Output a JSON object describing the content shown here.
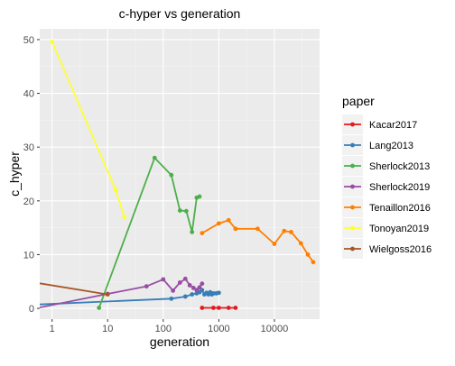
{
  "chart_data": {
    "type": "line",
    "title": "c-hyper vs generation",
    "xlabel": "generation",
    "ylabel": "c_hyper",
    "x_scale": "log10",
    "xlim": [
      0.6,
      65000
    ],
    "ylim": [
      -2,
      52
    ],
    "x_ticks": [
      1,
      10,
      100,
      1000,
      10000
    ],
    "x_tick_labels": [
      "1",
      "10",
      "100",
      "1000",
      "10000"
    ],
    "y_ticks": [
      0,
      10,
      20,
      30,
      40,
      50
    ],
    "y_tick_labels": [
      "0",
      "10",
      "20",
      "30",
      "40",
      "50"
    ],
    "grid": true,
    "legend_position": "right",
    "legend_title": "paper",
    "series": [
      {
        "name": "Kacar2017",
        "color": "#E41A1C",
        "points": [
          [
            500,
            0.1
          ],
          [
            800,
            0.1
          ],
          [
            1000,
            0.1
          ],
          [
            1500,
            0.1
          ],
          [
            2000,
            0.1
          ]
        ]
      },
      {
        "name": "Lang2013",
        "color": "#377EB8",
        "points": [
          [
            0.5,
            0.7
          ],
          [
            140,
            1.8
          ],
          [
            250,
            2.2
          ],
          [
            330,
            2.6
          ],
          [
            400,
            2.8
          ],
          [
            450,
            3.0
          ],
          [
            500,
            3.4
          ],
          [
            550,
            2.6
          ],
          [
            600,
            2.9
          ],
          [
            650,
            2.6
          ],
          [
            700,
            3.0
          ],
          [
            750,
            2.6
          ],
          [
            800,
            2.8
          ],
          [
            900,
            2.8
          ],
          [
            1000,
            2.9
          ]
        ]
      },
      {
        "name": "Sherlock2013",
        "color": "#4DAF4A",
        "points": [
          [
            7,
            0.1
          ],
          [
            70,
            28.0
          ],
          [
            140,
            24.8
          ],
          [
            200,
            18.2
          ],
          [
            260,
            18.1
          ],
          [
            330,
            14.2
          ],
          [
            400,
            20.6
          ],
          [
            450,
            20.8
          ]
        ]
      },
      {
        "name": "Sherlock2019",
        "color": "#984EA3",
        "points": [
          [
            0.5,
            0.0
          ],
          [
            10,
            2.7
          ],
          [
            50,
            4.1
          ],
          [
            100,
            5.4
          ],
          [
            150,
            3.3
          ],
          [
            200,
            4.8
          ],
          [
            250,
            5.5
          ],
          [
            300,
            4.3
          ],
          [
            350,
            3.8
          ],
          [
            400,
            3.4
          ],
          [
            450,
            3.9
          ],
          [
            500,
            4.6
          ]
        ]
      },
      {
        "name": "Tenaillon2016",
        "color": "#FF7F00",
        "points": [
          [
            500,
            14.0
          ],
          [
            1000,
            15.8
          ],
          [
            1500,
            16.4
          ],
          [
            2000,
            14.8
          ],
          [
            5000,
            14.8
          ],
          [
            10000,
            12.0
          ],
          [
            15000,
            14.4
          ],
          [
            20000,
            14.2
          ],
          [
            30000,
            12.1
          ],
          [
            40000,
            10.0
          ],
          [
            50000,
            8.6
          ]
        ]
      },
      {
        "name": "Tonoyan2019",
        "color": "#FFFF33",
        "points": [
          [
            1,
            49.6
          ],
          [
            14,
            22.0
          ],
          [
            20,
            17.0
          ]
        ]
      },
      {
        "name": "Wielgoss2016",
        "color": "#A65628",
        "points": [
          [
            0.5,
            4.8
          ],
          [
            10,
            2.6
          ]
        ]
      }
    ]
  }
}
